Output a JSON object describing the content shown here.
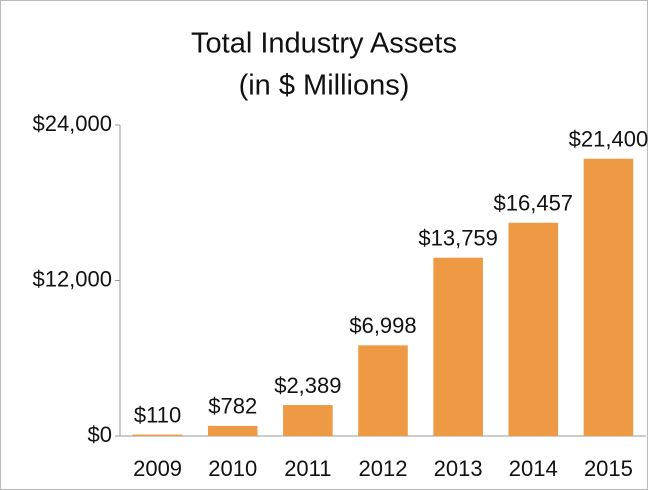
{
  "chart_data": {
    "type": "bar",
    "title": "Total Industry Assets",
    "subtitle": "(in $ Millions)",
    "categories": [
      "2009",
      "2010",
      "2011",
      "2012",
      "2013",
      "2014",
      "2015"
    ],
    "values": [
      110,
      782,
      2389,
      6998,
      13759,
      16457,
      21400
    ],
    "value_labels": [
      "$110",
      "$782",
      "$2,389",
      "$6,998",
      "$13,759",
      "$16,457",
      "$21,400"
    ],
    "color": "#ee9a45",
    "ylim": [
      0,
      24000
    ],
    "yticks": [
      {
        "value": 0,
        "label": "$0"
      },
      {
        "value": 12000,
        "label": "$12,000"
      },
      {
        "value": 24000,
        "label": "$24,000"
      }
    ],
    "grid": false
  }
}
